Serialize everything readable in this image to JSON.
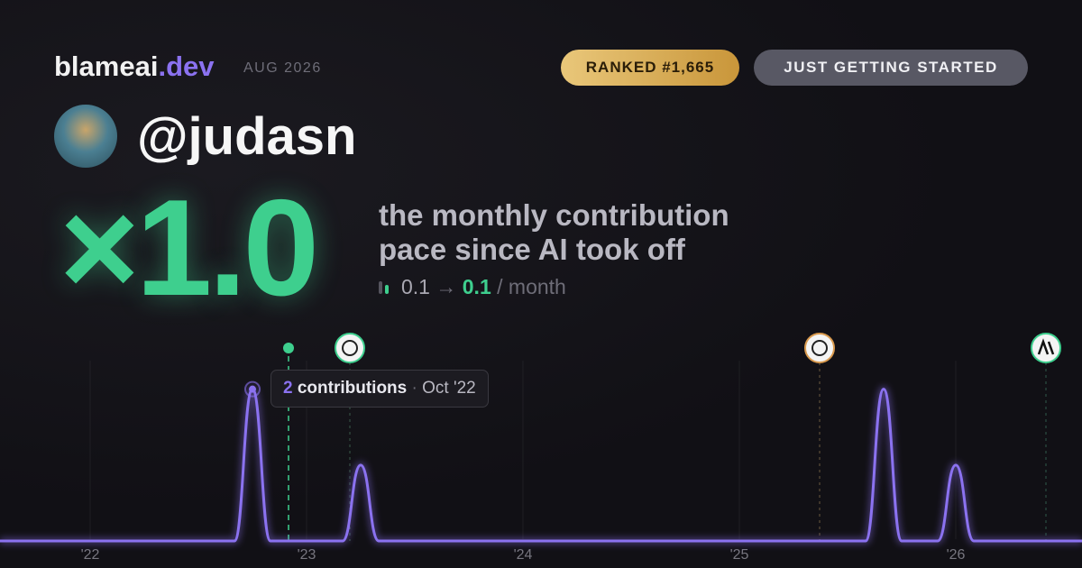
{
  "header": {
    "brand": "blameai",
    "brand_tld": ".dev",
    "period": "AUG 2026",
    "rank_badge": "RANKED #1,665",
    "status_badge": "JUST GETTING STARTED"
  },
  "profile": {
    "handle": "@judasn"
  },
  "hero": {
    "multiplier": "×1.0",
    "caption_lines": [
      "the monthly contribution",
      "pace since AI took off"
    ],
    "pace_from": "0.1",
    "pace_arrow": "→",
    "pace_to": "0.1",
    "pace_unit": "/ month"
  },
  "tooltip": {
    "label": "contributions",
    "date": "Oct '22"
  },
  "chart_data": {
    "type": "line",
    "categories": [
      null,
      null,
      null,
      null,
      null,
      "'22",
      null,
      null,
      null,
      null,
      null,
      null,
      null,
      null,
      null,
      null,
      null,
      "'23",
      null,
      null,
      null,
      null,
      null,
      null,
      null,
      null,
      null,
      null,
      null,
      "'24",
      null,
      null,
      null,
      null,
      null,
      null,
      null,
      null,
      null,
      null,
      null,
      "'25",
      null,
      null,
      null,
      null,
      null,
      null,
      null,
      null,
      null,
      null,
      null,
      "'26",
      null,
      null,
      null,
      null,
      null,
      null,
      null
    ],
    "series": [
      {
        "name": "contributions",
        "color": "#8b72f0",
        "values": [
          0,
          0,
          0,
          0,
          0,
          0,
          0,
          0,
          0,
          0,
          0,
          0,
          0,
          0,
          2,
          0,
          0,
          0,
          0,
          0,
          1,
          0,
          0,
          0,
          0,
          0,
          0,
          0,
          0,
          0,
          0,
          0,
          0,
          0,
          0,
          0,
          0,
          0,
          0,
          0,
          0,
          0,
          0,
          0,
          0,
          0,
          0,
          0,
          0,
          2,
          0,
          0,
          0,
          1,
          0,
          0,
          0,
          0,
          0,
          0,
          0
        ]
      }
    ],
    "ylim": [
      0,
      2.4
    ],
    "grid": true
  }
}
